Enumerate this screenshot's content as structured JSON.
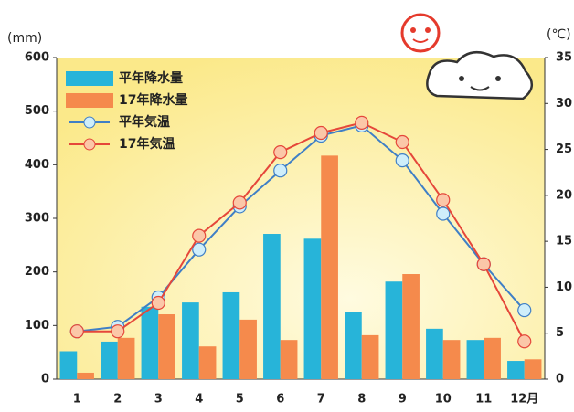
{
  "chart_data": {
    "type": "bar-line",
    "y_label": "(mm)",
    "y2_label": "(℃)",
    "categories": [
      "1",
      "2",
      "3",
      "4",
      "5",
      "6",
      "7",
      "8",
      "9",
      "10",
      "11",
      "12月"
    ],
    "series": [
      {
        "name": "平年降水量",
        "kind": "bar",
        "color": "#27b4d9",
        "values": [
          52,
          70,
          135,
          143,
          162,
          271,
          262,
          126,
          182,
          94,
          73,
          34
        ]
      },
      {
        "name": "17年降水量",
        "kind": "bar",
        "color": "#f58a4c",
        "values": [
          12,
          77,
          121,
          61,
          111,
          73,
          417,
          82,
          196,
          73,
          77,
          37
        ]
      },
      {
        "name": "平年気温",
        "kind": "line",
        "axis": "y2",
        "color": "#3f7fc6",
        "values": [
          5.2,
          5.7,
          8.9,
          14.1,
          18.8,
          22.7,
          26.5,
          27.6,
          23.8,
          18.0,
          12.5,
          7.5
        ]
      },
      {
        "name": "17年気温",
        "kind": "line",
        "axis": "y2",
        "color": "#e5473a",
        "values": [
          5.2,
          5.2,
          8.3,
          15.6,
          19.2,
          24.7,
          26.8,
          27.9,
          25.8,
          19.5,
          12.5,
          4.1
        ]
      }
    ],
    "ylim": [
      0,
      600
    ],
    "yticks": [
      0,
      100,
      200,
      300,
      400,
      500,
      600
    ],
    "y2lim": [
      0,
      35
    ],
    "y2ticks": [
      0,
      5,
      10,
      15,
      20,
      25,
      30,
      35
    ]
  }
}
